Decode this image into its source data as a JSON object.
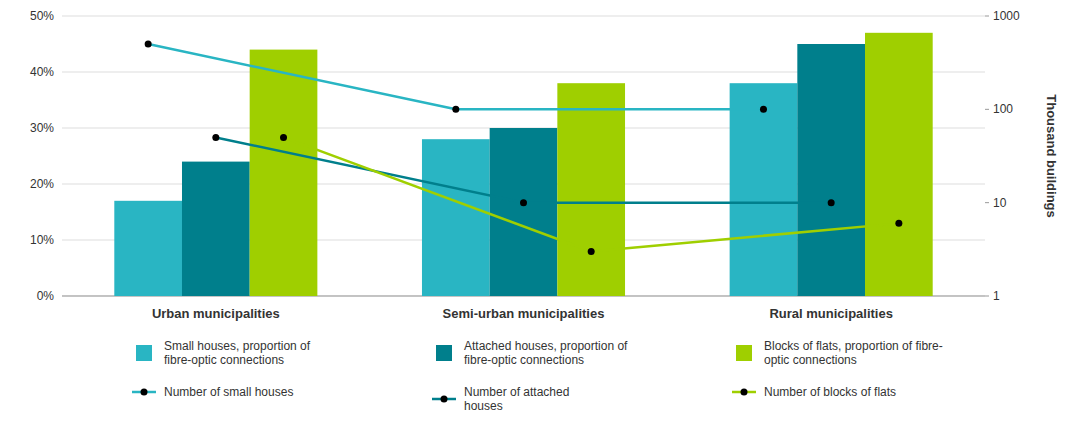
{
  "chart_data": {
    "type": "bar",
    "categories": [
      "Urban municipalities",
      "Semi-urban municipalities",
      "Rural municipalities"
    ],
    "series": [
      {
        "name": "Small houses, proportion of\nfibre-optic connections",
        "type": "bar",
        "color": "#29b5c3",
        "values": [
          0.17,
          0.28,
          0.38
        ]
      },
      {
        "name": "Attached houses, proportion of\nfibre-optic connections",
        "type": "bar",
        "color": "#007f8c",
        "values": [
          0.24,
          0.3,
          0.45
        ]
      },
      {
        "name": "Blocks of flats, proportion of fibre-\noptic connections",
        "type": "bar",
        "color": "#9fcf00",
        "values": [
          0.44,
          0.38,
          0.47
        ]
      },
      {
        "name": "Number of small houses",
        "type": "line",
        "axis": "y2",
        "color": "#29b5c3",
        "marker": "circle",
        "values": [
          500,
          100,
          100
        ]
      },
      {
        "name": "Number of attached\nhouses",
        "type": "line",
        "axis": "y2",
        "color": "#007f8c",
        "marker": "circle",
        "values": [
          50,
          10,
          10
        ]
      },
      {
        "name": "Number of blocks of flats",
        "type": "line",
        "axis": "y2",
        "color": "#9fcf00",
        "marker": "circle",
        "values": [
          50,
          3,
          6
        ]
      }
    ],
    "ylim": [
      0,
      0.5
    ],
    "yticks": [
      {
        "value": 0,
        "label": "0%"
      },
      {
        "value": 0.1,
        "label": "10%"
      },
      {
        "value": 0.2,
        "label": "20%"
      },
      {
        "value": 0.3,
        "label": "30%"
      },
      {
        "value": 0.4,
        "label": "40%"
      },
      {
        "value": 0.5,
        "label": "50%"
      }
    ],
    "y2label": "Thousand buildings",
    "y2lim": [
      1,
      1000
    ],
    "y2ticks": [
      1,
      10,
      100,
      1000
    ],
    "log": "y2",
    "grid": true,
    "legend": "bottom"
  }
}
